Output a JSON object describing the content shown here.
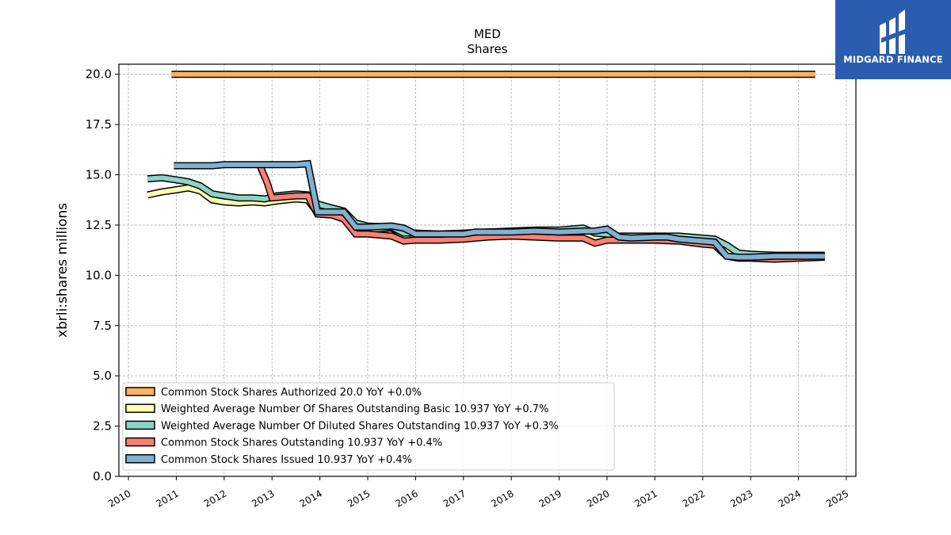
{
  "chart_data": {
    "type": "line",
    "title": "MED",
    "subtitle": "Shares",
    "xlabel": "",
    "ylabel": "xbrli:shares millions",
    "xlim": [
      2009.8,
      2025.2
    ],
    "ylim": [
      0.0,
      20.5
    ],
    "x_ticks": [
      "2010",
      "2011",
      "2012",
      "2013",
      "2014",
      "2015",
      "2016",
      "2017",
      "2018",
      "2019",
      "2020",
      "2021",
      "2022",
      "2023",
      "2024",
      "2025"
    ],
    "y_ticks": [
      "0.0",
      "2.5",
      "5.0",
      "7.5",
      "10.0",
      "12.5",
      "15.0",
      "17.5",
      "20.0"
    ],
    "grid": true,
    "legend_position": "lower-left",
    "series": [
      {
        "name": "Common Stock Shares Authorized",
        "legend": "Common Stock Shares Authorized  20.0 YoY +0.0%",
        "color": "#fdb462",
        "points": [
          [
            2010.9,
            20.0
          ],
          [
            2024.35,
            20.0
          ]
        ]
      },
      {
        "name": "Weighted Average Number Of Shares Outstanding Basic",
        "legend": "Weighted Average Number Of Shares Outstanding Basic  10.937 YoY +0.7%",
        "color": "#ffffb3",
        "points": [
          [
            2010.4,
            14.0
          ],
          [
            2010.7,
            14.15
          ],
          [
            2011.0,
            14.25
          ],
          [
            2011.25,
            14.35
          ],
          [
            2011.5,
            14.2
          ],
          [
            2011.75,
            13.75
          ],
          [
            2012.0,
            13.65
          ],
          [
            2012.3,
            13.6
          ],
          [
            2012.6,
            13.65
          ],
          [
            2012.85,
            13.6
          ],
          [
            2013.1,
            13.7
          ],
          [
            2013.5,
            13.8
          ],
          [
            2013.75,
            13.75
          ],
          [
            2013.95,
            13.1
          ],
          [
            2014.25,
            13.1
          ],
          [
            2014.5,
            13.1
          ],
          [
            2014.75,
            12.45
          ],
          [
            2015.0,
            12.3
          ],
          [
            2015.5,
            12.35
          ],
          [
            2015.75,
            12.0
          ],
          [
            2016.0,
            11.95
          ],
          [
            2016.5,
            11.85
          ],
          [
            2017.0,
            11.9
          ],
          [
            2017.5,
            11.95
          ],
          [
            2018.0,
            12.0
          ],
          [
            2018.5,
            12.05
          ],
          [
            2019.0,
            12.05
          ],
          [
            2019.5,
            12.1
          ],
          [
            2019.75,
            11.9
          ],
          [
            2020.0,
            11.95
          ],
          [
            2020.25,
            11.85
          ],
          [
            2020.5,
            11.8
          ],
          [
            2021.0,
            11.8
          ],
          [
            2021.5,
            11.8
          ],
          [
            2022.0,
            11.75
          ],
          [
            2022.25,
            11.7
          ],
          [
            2022.5,
            11.2
          ],
          [
            2022.75,
            11.05
          ],
          [
            2023.0,
            11.0
          ],
          [
            2023.5,
            10.95
          ],
          [
            2024.0,
            10.95
          ],
          [
            2024.55,
            10.95
          ]
        ]
      },
      {
        "name": "Weighted Average Number Of Diluted Shares Outstanding",
        "legend": "Weighted Average Number Of Diluted Shares Outstanding  10.937 YoY +0.3%",
        "color": "#8dd3c7",
        "points": [
          [
            2010.4,
            14.8
          ],
          [
            2010.7,
            14.85
          ],
          [
            2011.0,
            14.75
          ],
          [
            2011.25,
            14.65
          ],
          [
            2011.5,
            14.45
          ],
          [
            2011.75,
            14.05
          ],
          [
            2012.0,
            13.95
          ],
          [
            2012.3,
            13.85
          ],
          [
            2012.6,
            13.85
          ],
          [
            2012.85,
            13.8
          ],
          [
            2013.1,
            13.95
          ],
          [
            2013.5,
            14.05
          ],
          [
            2013.75,
            14.0
          ],
          [
            2013.95,
            13.55
          ],
          [
            2014.25,
            13.35
          ],
          [
            2014.5,
            13.2
          ],
          [
            2014.75,
            12.6
          ],
          [
            2015.0,
            12.45
          ],
          [
            2015.5,
            12.4
          ],
          [
            2015.75,
            12.1
          ],
          [
            2016.0,
            12.1
          ],
          [
            2016.5,
            12.05
          ],
          [
            2017.0,
            12.1
          ],
          [
            2017.5,
            12.15
          ],
          [
            2018.0,
            12.2
          ],
          [
            2018.5,
            12.25
          ],
          [
            2019.0,
            12.25
          ],
          [
            2019.5,
            12.35
          ],
          [
            2019.75,
            12.1
          ],
          [
            2020.0,
            12.05
          ],
          [
            2020.25,
            11.95
          ],
          [
            2020.5,
            11.95
          ],
          [
            2021.0,
            11.95
          ],
          [
            2021.5,
            11.95
          ],
          [
            2022.0,
            11.85
          ],
          [
            2022.25,
            11.8
          ],
          [
            2022.5,
            11.5
          ],
          [
            2022.75,
            11.1
          ],
          [
            2023.0,
            11.05
          ],
          [
            2023.5,
            11.0
          ],
          [
            2024.0,
            11.0
          ],
          [
            2024.55,
            11.0
          ]
        ]
      },
      {
        "name": "Common Stock Shares Outstanding",
        "legend": "Common Stock Shares Outstanding  10.937 YoY +0.4%",
        "color": "#fb8072",
        "points": [
          [
            2012.75,
            15.45
          ],
          [
            2012.9,
            14.6
          ],
          [
            2013.0,
            13.85
          ],
          [
            2013.5,
            13.95
          ],
          [
            2013.75,
            13.95
          ],
          [
            2013.95,
            13.05
          ],
          [
            2014.25,
            13.0
          ],
          [
            2014.5,
            12.8
          ],
          [
            2014.75,
            12.05
          ],
          [
            2015.0,
            12.05
          ],
          [
            2015.5,
            11.95
          ],
          [
            2015.75,
            11.7
          ],
          [
            2016.0,
            11.75
          ],
          [
            2016.5,
            11.75
          ],
          [
            2017.0,
            11.8
          ],
          [
            2017.5,
            11.9
          ],
          [
            2018.0,
            11.95
          ],
          [
            2018.5,
            11.9
          ],
          [
            2019.0,
            11.85
          ],
          [
            2019.5,
            11.85
          ],
          [
            2019.75,
            11.6
          ],
          [
            2020.0,
            11.75
          ],
          [
            2020.5,
            11.75
          ],
          [
            2021.0,
            11.75
          ],
          [
            2021.5,
            11.7
          ],
          [
            2022.0,
            11.55
          ],
          [
            2022.25,
            11.5
          ],
          [
            2022.5,
            10.95
          ],
          [
            2022.75,
            10.85
          ],
          [
            2023.0,
            10.85
          ],
          [
            2023.5,
            10.8
          ],
          [
            2024.0,
            10.85
          ],
          [
            2024.55,
            10.9
          ]
        ]
      },
      {
        "name": "Common Stock Shares Issued",
        "legend": "Common Stock Shares Issued  10.937 YoY +0.4%",
        "color": "#80b1d3",
        "points": [
          [
            2010.95,
            15.45
          ],
          [
            2011.25,
            15.45
          ],
          [
            2011.75,
            15.45
          ],
          [
            2012.0,
            15.5
          ],
          [
            2012.5,
            15.5
          ],
          [
            2013.0,
            15.5
          ],
          [
            2013.5,
            15.5
          ],
          [
            2013.75,
            15.55
          ],
          [
            2013.95,
            13.15
          ],
          [
            2014.25,
            13.15
          ],
          [
            2014.5,
            13.15
          ],
          [
            2014.75,
            12.4
          ],
          [
            2015.0,
            12.4
          ],
          [
            2015.5,
            12.45
          ],
          [
            2015.75,
            12.35
          ],
          [
            2016.0,
            12.05
          ],
          [
            2016.5,
            12.05
          ],
          [
            2017.0,
            12.05
          ],
          [
            2017.25,
            12.15
          ],
          [
            2017.5,
            12.15
          ],
          [
            2018.0,
            12.15
          ],
          [
            2018.5,
            12.2
          ],
          [
            2019.0,
            12.15
          ],
          [
            2019.5,
            12.2
          ],
          [
            2019.75,
            12.2
          ],
          [
            2020.0,
            12.3
          ],
          [
            2020.25,
            11.9
          ],
          [
            2020.5,
            11.85
          ],
          [
            2021.0,
            11.9
          ],
          [
            2021.25,
            11.9
          ],
          [
            2021.5,
            11.8
          ],
          [
            2022.0,
            11.7
          ],
          [
            2022.25,
            11.65
          ],
          [
            2022.5,
            10.95
          ],
          [
            2022.75,
            10.9
          ],
          [
            2023.0,
            10.9
          ],
          [
            2023.5,
            10.95
          ],
          [
            2024.0,
            10.95
          ],
          [
            2024.55,
            10.95
          ]
        ]
      }
    ]
  },
  "logo": {
    "text": "MIDGARD FINANCE",
    "color": "#2a5db0"
  }
}
